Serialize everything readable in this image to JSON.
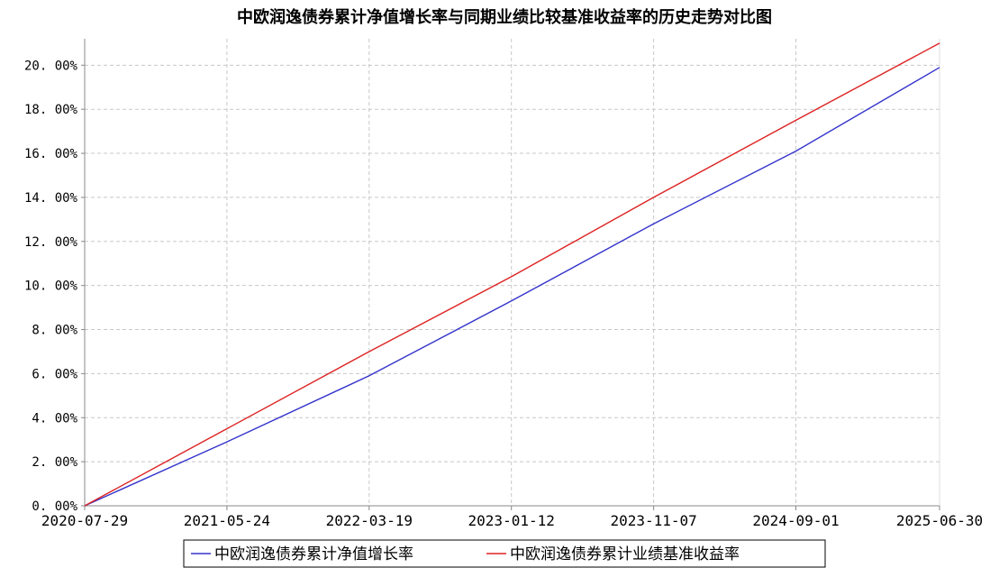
{
  "chart_data": {
    "type": "line",
    "title": "中欧润逸债券累计净值增长率与同期业绩比较基准收益率的历史走势对比图",
    "xlabel": "",
    "ylabel": "",
    "x_ticks": [
      "2020-07-29",
      "2021-05-24",
      "2022-03-19",
      "2023-01-12",
      "2023-11-07",
      "2024-09-01",
      "2025-06-30"
    ],
    "y_ticks": [
      "0.00%",
      "2.00%",
      "4.00%",
      "6.00%",
      "8.00%",
      "10.00%",
      "12.00%",
      "14.00%",
      "16.00%",
      "18.00%",
      "20.00%"
    ],
    "ylim": [
      0,
      21.2
    ],
    "xlim": [
      "2020-07-29",
      "2025-06-30"
    ],
    "grid": true,
    "legend_position": "bottom-center",
    "series": [
      {
        "name": "中欧润逸债券累计净值增长率",
        "color": "#3333cc",
        "points": [
          [
            "2020-07-29",
            0.0
          ],
          [
            "2021-05-24",
            2.9
          ],
          [
            "2022-03-19",
            5.9
          ],
          [
            "2023-01-12",
            9.3
          ],
          [
            "2023-11-07",
            12.8
          ],
          [
            "2024-09-01",
            16.1
          ],
          [
            "2025-06-30",
            19.9
          ]
        ]
      },
      {
        "name": "中欧润逸债券累计业绩基准收益率",
        "color": "#dd2222",
        "points": [
          [
            "2020-07-29",
            0.0
          ],
          [
            "2021-05-24",
            3.5
          ],
          [
            "2022-03-19",
            7.0
          ],
          [
            "2023-01-12",
            10.4
          ],
          [
            "2023-11-07",
            14.0
          ],
          [
            "2024-09-01",
            17.5
          ],
          [
            "2025-06-30",
            21.0
          ]
        ]
      }
    ]
  }
}
